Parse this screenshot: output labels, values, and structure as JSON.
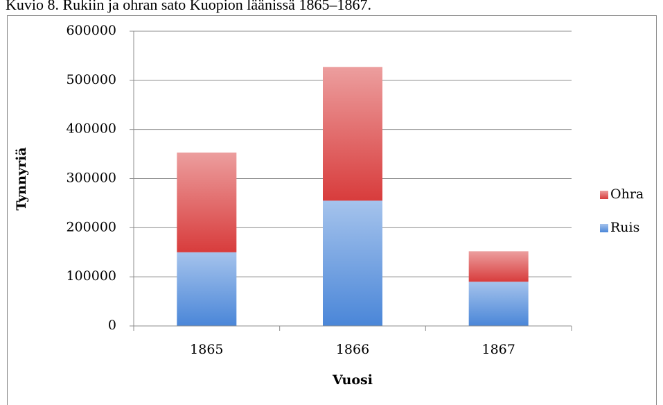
{
  "chart_data": {
    "type": "stacked_bar",
    "title": "Kuvio 8. Rukiin ja ohran sato Kuopion läänissä 1865–1867.",
    "categories": [
      "1865",
      "1866",
      "1867"
    ],
    "series": [
      {
        "name": "Ruis",
        "color": "#4a86d8",
        "values": [
          150000,
          255000,
          90000
        ]
      },
      {
        "name": "Ohra",
        "color": "#d83c3c",
        "values": [
          203000,
          272000,
          62000
        ]
      }
    ],
    "xlabel": "Vuosi",
    "ylabel": "Tynnyriä",
    "ylim": [
      0,
      600000
    ],
    "yticks": [
      0,
      100000,
      200000,
      300000,
      400000,
      500000,
      600000
    ],
    "grid": true,
    "legend": "right"
  }
}
